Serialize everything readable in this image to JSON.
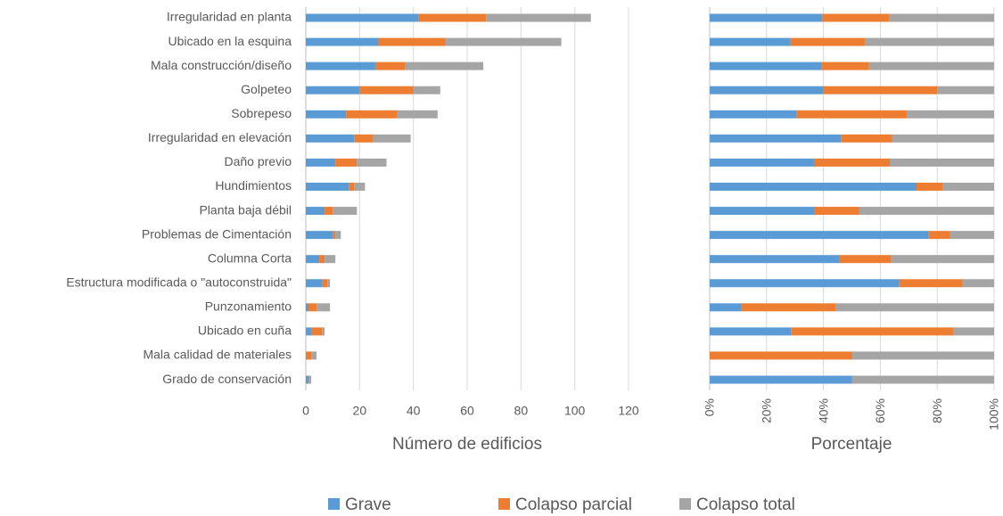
{
  "chart_data": {
    "type": "stacked_bar",
    "categories": [
      "Irregularidad en planta",
      "Ubicado en la esquina",
      "Mala construcción/diseño",
      "Golpeteo",
      "Sobrepeso",
      "Irregularidad en elevación",
      "Daño previo",
      "Hundimientos",
      "Planta baja débil",
      "Problemas de Cimentación",
      "Columna Corta",
      "Estructura modificada o \"autoconstruida\"",
      "Punzonamiento",
      "Ubicado en cuña",
      "Mala calidad de materiales",
      "Grado de conservación"
    ],
    "series": [
      {
        "name": "Grave",
        "color": "#5b9bd5",
        "values": [
          42,
          27,
          26,
          20,
          15,
          18,
          11,
          16,
          7,
          10,
          5,
          6,
          1,
          2,
          0,
          1
        ]
      },
      {
        "name": "Colapso parcial",
        "color": "#ed7d31",
        "values": [
          25,
          25,
          11,
          20,
          19,
          7,
          8,
          2,
          3,
          1,
          2,
          2,
          3,
          4,
          2,
          0
        ]
      },
      {
        "name": "Colapso total",
        "color": "#a5a5a5",
        "values": [
          39,
          43,
          29,
          10,
          15,
          14,
          11,
          4,
          9,
          2,
          4,
          1,
          5,
          1,
          2,
          1
        ]
      }
    ],
    "xlabel": "Número de edificios",
    "xlim": [
      0,
      120
    ],
    "xticks": [
      0,
      20,
      40,
      60,
      80,
      100,
      120
    ],
    "grid": true,
    "percent_panel": {
      "xlabel": "Porcentaje",
      "xlim": [
        0,
        100
      ],
      "xticks": [
        {
          "value": 0,
          "label": "0%"
        },
        {
          "value": 20,
          "label": "20%"
        },
        {
          "value": 40,
          "label": "40%"
        },
        {
          "value": 60,
          "label": "60%"
        },
        {
          "value": 80,
          "label": "80%"
        },
        {
          "value": 100,
          "label": "100%"
        }
      ]
    },
    "legend": "bottom"
  }
}
